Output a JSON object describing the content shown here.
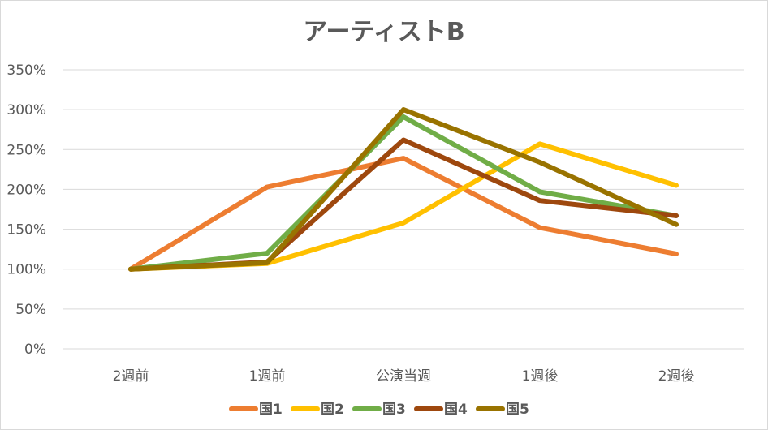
{
  "chart_data": {
    "type": "line",
    "title": "アーティストB",
    "xlabel": "",
    "ylabel": "",
    "categories": [
      "2週前",
      "1週前",
      "公演当週",
      "1週後",
      "2週後"
    ],
    "y_ticks": [
      "0%",
      "50%",
      "100%",
      "150%",
      "200%",
      "250%",
      "300%",
      "350%"
    ],
    "ylim": [
      0,
      350
    ],
    "grid": true,
    "legend_position": "bottom",
    "series": [
      {
        "name": "国1",
        "color": "#ED7D31",
        "values": [
          100,
          203,
          239,
          152,
          119
        ]
      },
      {
        "name": "国2",
        "color": "#FFC000",
        "values": [
          100,
          107,
          158,
          257,
          205
        ]
      },
      {
        "name": "国3",
        "color": "#70AD47",
        "values": [
          100,
          120,
          291,
          197,
          167
        ]
      },
      {
        "name": "国4",
        "color": "#9E480E",
        "values": [
          100,
          109,
          262,
          186,
          167
        ]
      },
      {
        "name": "国5",
        "color": "#997300",
        "values": [
          100,
          108,
          300,
          234,
          156
        ]
      }
    ]
  }
}
